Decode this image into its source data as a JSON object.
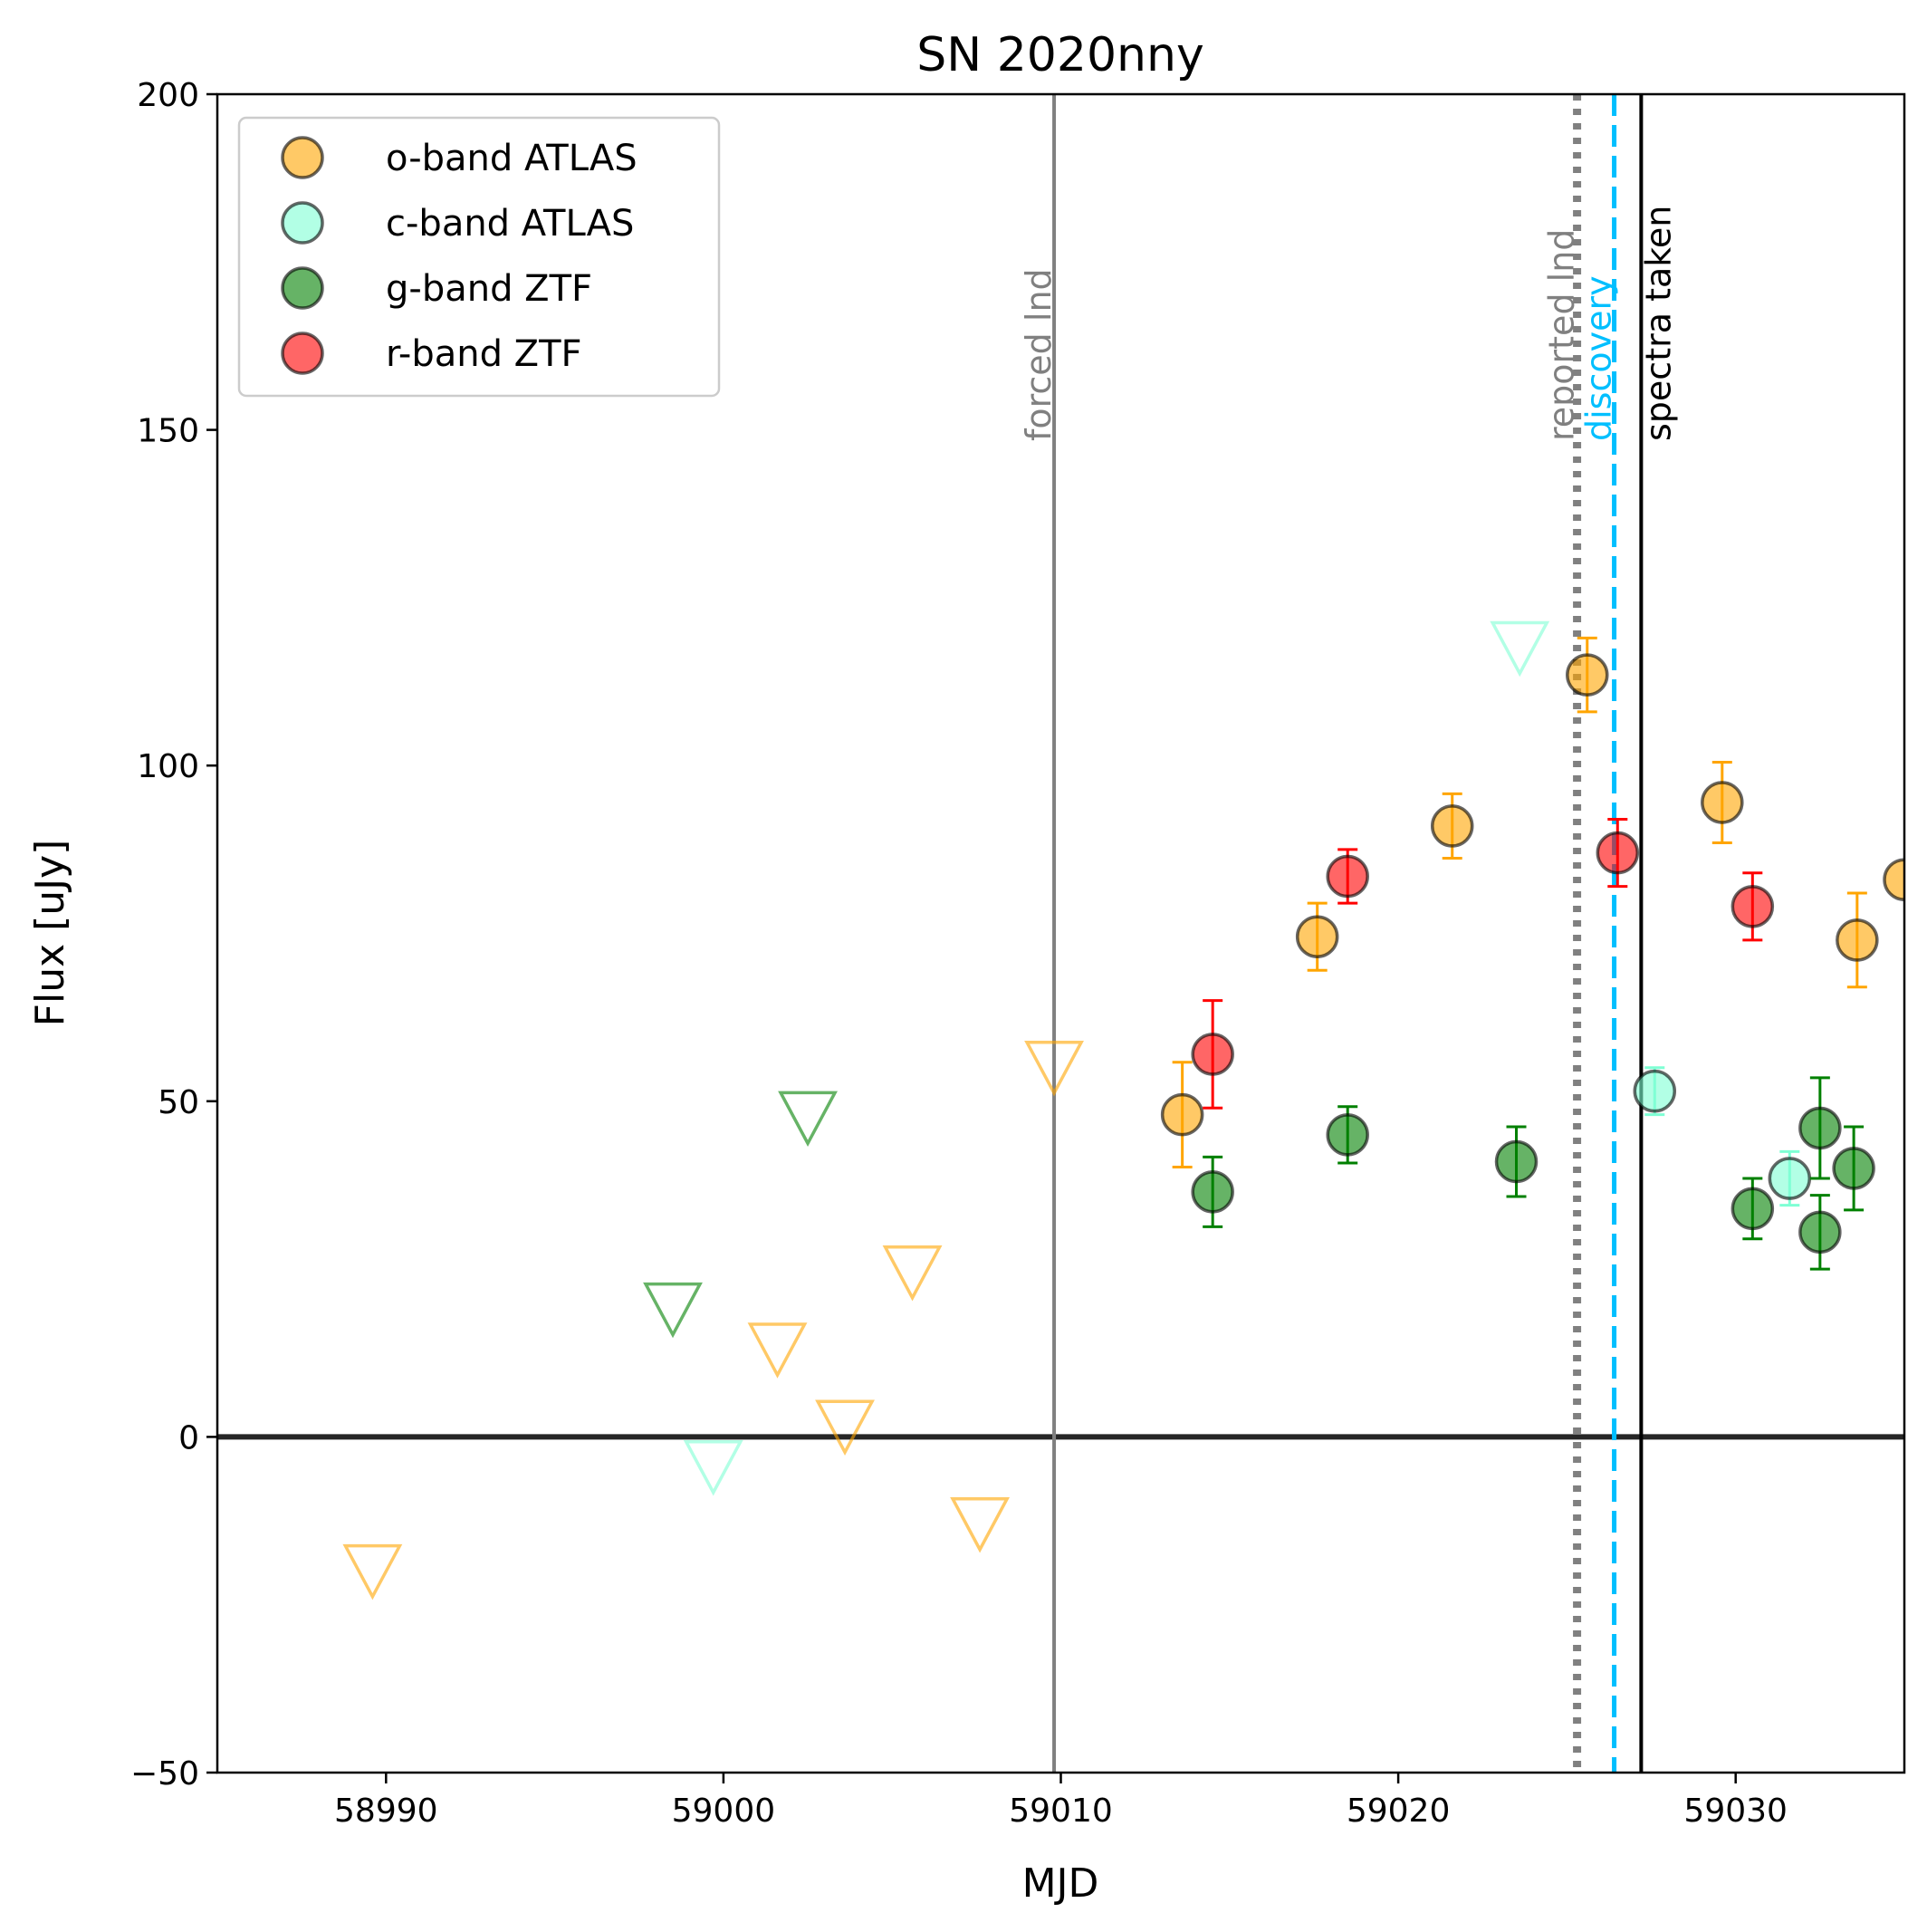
{
  "chart_data": {
    "type": "scatter",
    "title": "SN 2020nny",
    "xlabel": "MJD",
    "ylabel": "Flux [uJy]",
    "xlim": [
      58985,
      59035
    ],
    "ylim": [
      -50,
      200
    ],
    "xticks": [
      58990,
      59000,
      59010,
      59020,
      59030
    ],
    "yticks": [
      -50,
      0,
      50,
      100,
      150,
      200
    ],
    "legend_position": "upper-left",
    "series": [
      {
        "name": "o-band ATLAS",
        "color": "#ffa500",
        "detections": [
          {
            "x": 59013.6,
            "y": 48,
            "err": 7.8
          },
          {
            "x": 59017.6,
            "y": 74.5,
            "err": 5
          },
          {
            "x": 59021.6,
            "y": 91,
            "err": 4.8
          },
          {
            "x": 59025.6,
            "y": 113.5,
            "err": 5.5
          },
          {
            "x": 59029.6,
            "y": 94.5,
            "err": 6
          },
          {
            "x": 59033.6,
            "y": 74,
            "err": 7
          },
          {
            "x": 59035.0,
            "y": 83,
            "err": 0
          }
        ],
        "upper_limits": [
          {
            "x": 58989.6,
            "y": -20
          },
          {
            "x": 59001.6,
            "y": 13
          },
          {
            "x": 59003.6,
            "y": 1.5
          },
          {
            "x": 59005.6,
            "y": 24.5
          },
          {
            "x": 59007.6,
            "y": -13
          },
          {
            "x": 59009.8,
            "y": 55
          }
        ]
      },
      {
        "name": "c-band ATLAS",
        "color": "#7fffd4",
        "detections": [
          {
            "x": 59027.6,
            "y": 51.5,
            "err": 3.5
          },
          {
            "x": 59031.6,
            "y": 38.5,
            "err": 4
          }
        ],
        "upper_limits": [
          {
            "x": 58999.7,
            "y": -4.5
          },
          {
            "x": 59023.6,
            "y": 117.5
          }
        ]
      },
      {
        "name": "g-band ZTF",
        "color": "#008000",
        "detections": [
          {
            "x": 59014.5,
            "y": 36.5,
            "err": 5.2
          },
          {
            "x": 59018.5,
            "y": 45,
            "err": 4.2
          },
          {
            "x": 59023.5,
            "y": 41,
            "err": 5.2
          },
          {
            "x": 59030.5,
            "y": 34,
            "err": 4.5
          },
          {
            "x": 59032.5,
            "y": 46,
            "err": 7.5
          },
          {
            "x": 59032.5,
            "y": 30.5,
            "err": 5.5
          },
          {
            "x": 59033.5,
            "y": 40,
            "err": 6.2
          }
        ],
        "upper_limits": [
          {
            "x": 58998.5,
            "y": 19
          },
          {
            "x": 59002.5,
            "y": 47.5
          }
        ]
      },
      {
        "name": "r-band ZTF",
        "color": "#ff0000",
        "detections": [
          {
            "x": 59014.5,
            "y": 57,
            "err": 8
          },
          {
            "x": 59018.5,
            "y": 83.5,
            "err": 4
          },
          {
            "x": 59026.5,
            "y": 87,
            "err": 5
          },
          {
            "x": 59030.5,
            "y": 79,
            "err": 5
          }
        ],
        "upper_limits": []
      }
    ],
    "vlines": [
      {
        "x": 59009.8,
        "label": "forced lnd",
        "color": "#808080",
        "style": "solid"
      },
      {
        "x": 59025.3,
        "label": "reported lnd",
        "color": "#808080",
        "style": "dotted"
      },
      {
        "x": 59026.4,
        "label": "discovery",
        "color": "#00bfff",
        "style": "dashed"
      },
      {
        "x": 59027.2,
        "label": "spectra taken",
        "color": "#000000",
        "style": "solid"
      }
    ],
    "hline": {
      "y": 0,
      "color": "#262626"
    }
  }
}
